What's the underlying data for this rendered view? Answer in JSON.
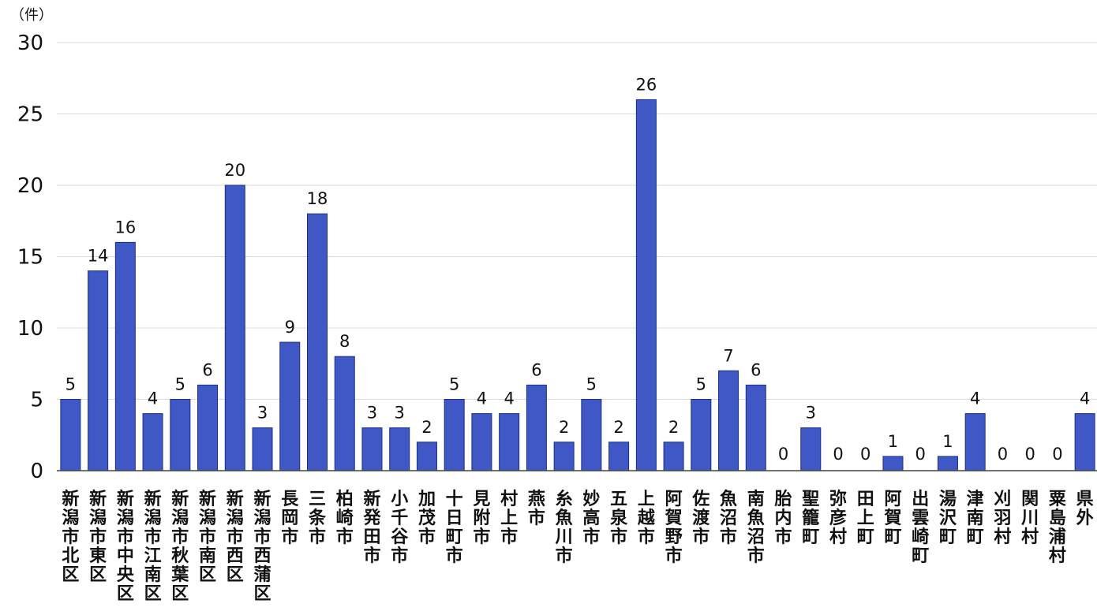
{
  "chart_data": {
    "type": "bar",
    "y_unit": "（件）",
    "yticks": [
      0,
      5,
      10,
      15,
      20,
      25,
      30
    ],
    "ylim": [
      0,
      30
    ],
    "grid": true,
    "bar_color": "#3f58c6",
    "categories": [
      "新潟市北区",
      "新潟市東区",
      "新潟市中央区",
      "新潟市江南区",
      "新潟市秋葉区",
      "新潟市南区",
      "新潟市西区",
      "新潟市西蒲区",
      "長岡市",
      "三条市",
      "柏崎市",
      "新発田市",
      "小千谷市",
      "加茂市",
      "十日町市",
      "見附市",
      "村上市",
      "燕市",
      "糸魚川市",
      "妙高市",
      "五泉市",
      "上越市",
      "阿賀野市",
      "佐渡市",
      "魚沼市",
      "南魚沼市",
      "胎内市",
      "聖籠町",
      "弥彦村",
      "田上町",
      "阿賀町",
      "出雲崎町",
      "湯沢町",
      "津南町",
      "刈羽村",
      "関川村",
      "粟島浦村",
      "県外"
    ],
    "values": [
      5,
      14,
      16,
      4,
      5,
      6,
      20,
      3,
      9,
      18,
      8,
      3,
      3,
      2,
      5,
      4,
      4,
      6,
      2,
      5,
      2,
      26,
      2,
      5,
      7,
      6,
      0,
      3,
      0,
      0,
      1,
      0,
      1,
      4,
      0,
      0,
      0,
      4
    ]
  }
}
